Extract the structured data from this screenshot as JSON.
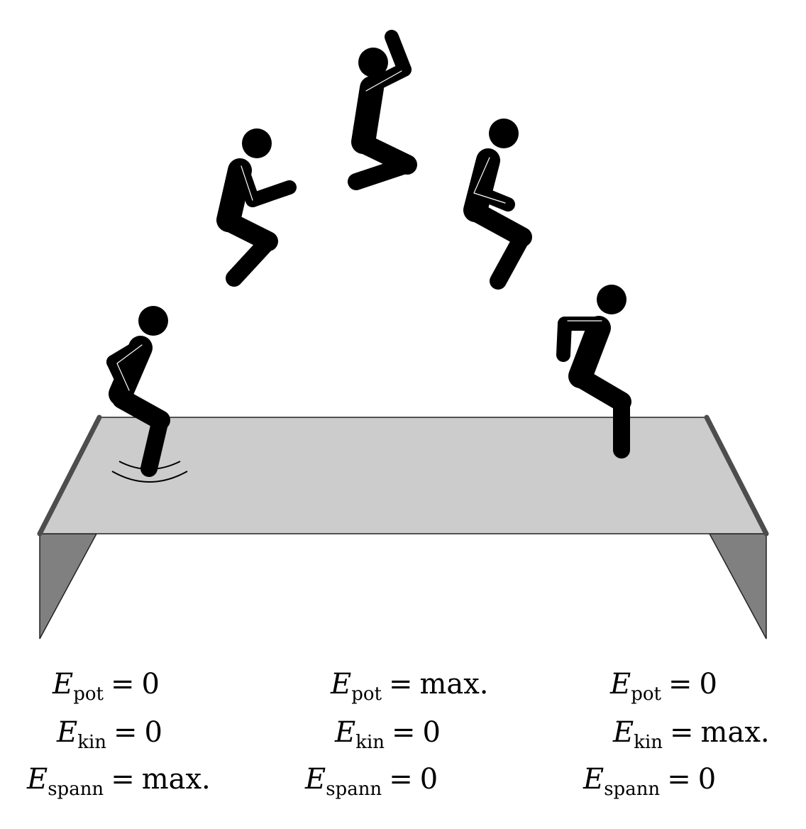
{
  "columns": [
    {
      "rows": [
        {
          "symbol": "E",
          "sub": "pot",
          "value": "0"
        },
        {
          "symbol": "E",
          "sub": "kin",
          "value": "0"
        },
        {
          "symbol": "E",
          "sub": "spann",
          "value": "max."
        }
      ]
    },
    {
      "rows": [
        {
          "symbol": "E",
          "sub": "pot",
          "value": "max."
        },
        {
          "symbol": "E",
          "sub": "kin",
          "value": "0"
        },
        {
          "symbol": "E",
          "sub": "spann",
          "value": "0"
        }
      ]
    },
    {
      "rows": [
        {
          "symbol": "E",
          "sub": "pot",
          "value": "0"
        },
        {
          "symbol": "E",
          "sub": "kin",
          "value": "max."
        },
        {
          "symbol": "E",
          "sub": "spann",
          "value": "0"
        }
      ]
    }
  ],
  "operator": "=",
  "colors": {
    "mat_surface": "#cccccc",
    "mat_side": "#808080",
    "mat_rail": "#4d4d4d",
    "figure": "#000000"
  }
}
